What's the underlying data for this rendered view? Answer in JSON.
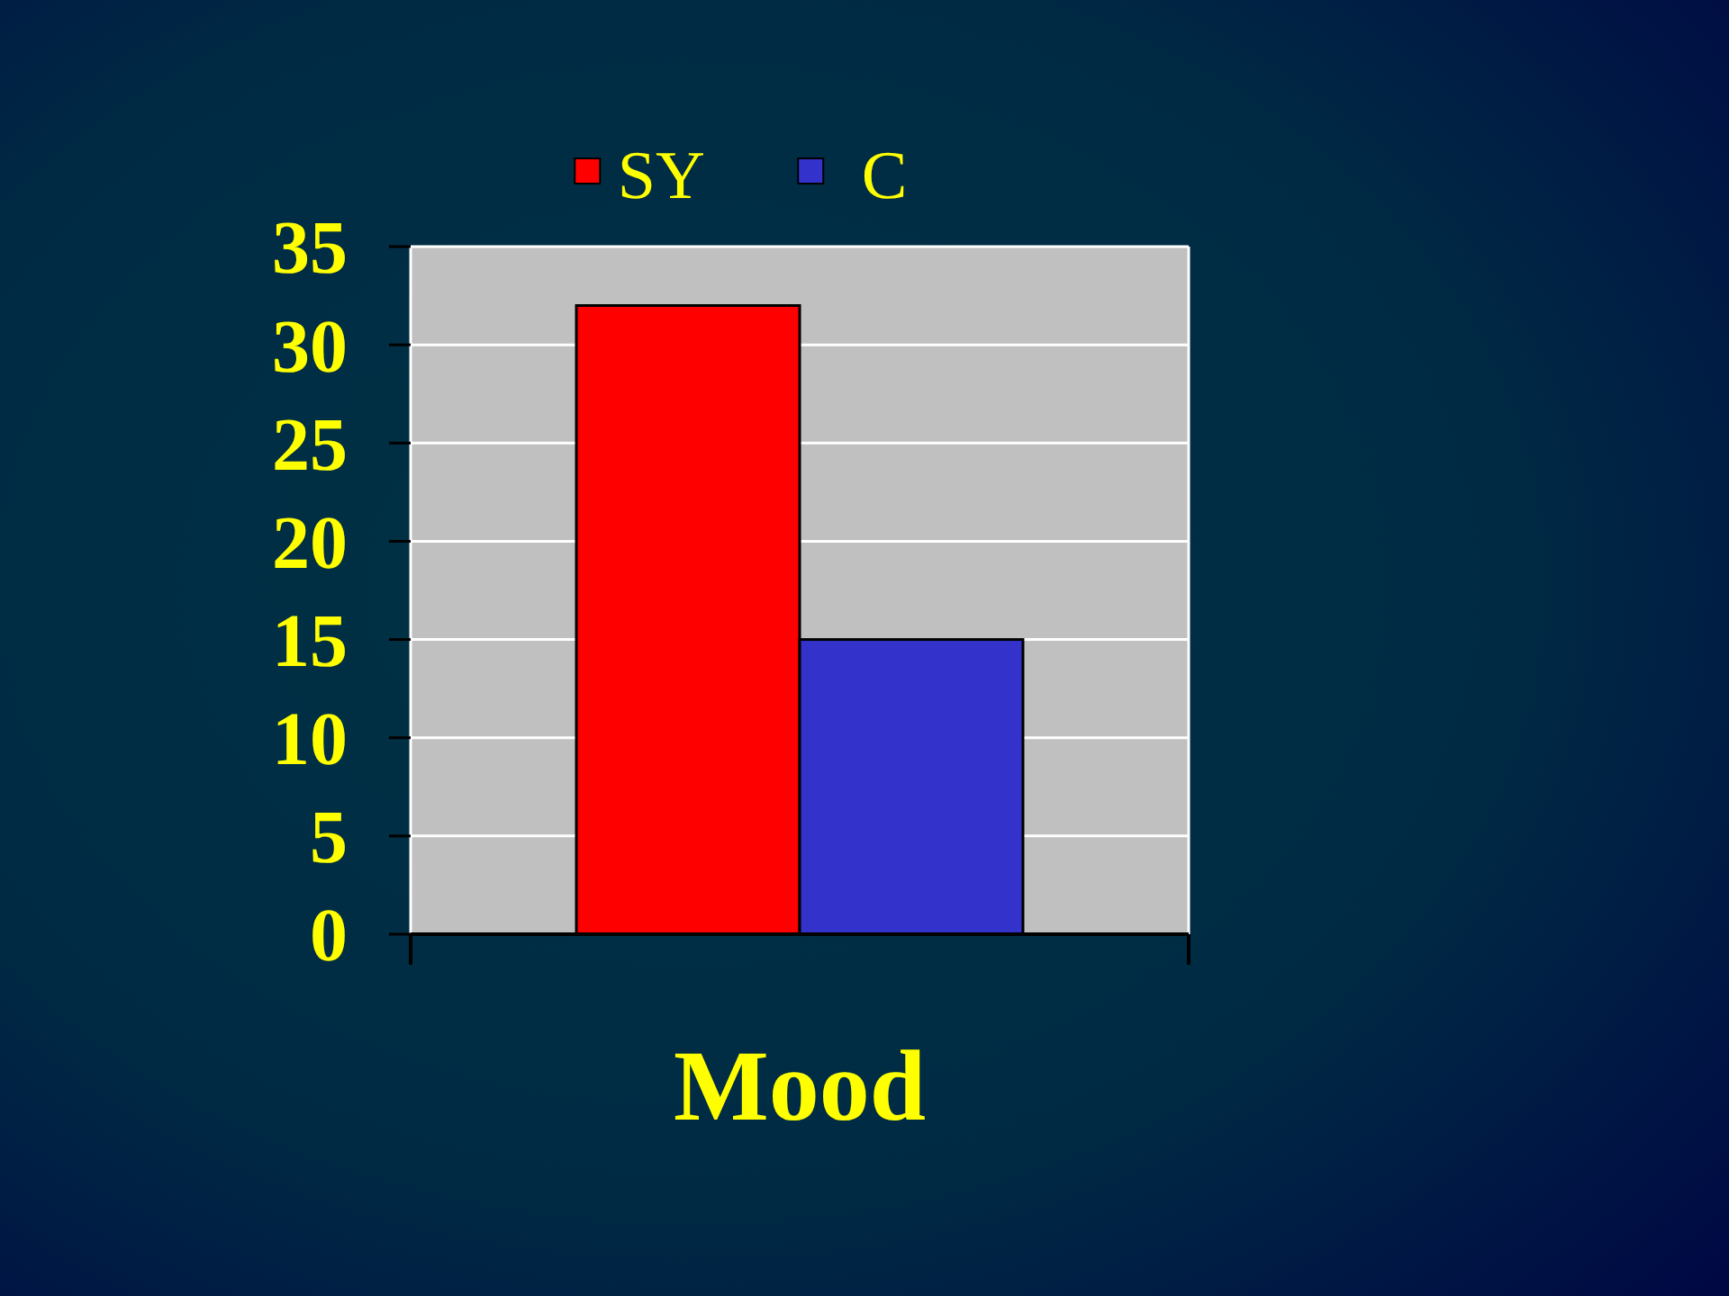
{
  "chart_data": {
    "type": "bar",
    "categories": [
      "Mood"
    ],
    "series": [
      {
        "name": "SY",
        "color": "#ff0000",
        "values": [
          32
        ]
      },
      {
        "name": "C",
        "color": "#3333cc",
        "values": [
          15
        ]
      }
    ],
    "ylim": [
      0,
      35
    ],
    "yticks": [
      0,
      5,
      10,
      15,
      20,
      25,
      30,
      35
    ],
    "grid": "y",
    "legend": "top"
  }
}
